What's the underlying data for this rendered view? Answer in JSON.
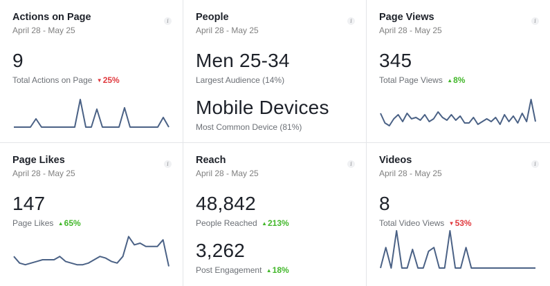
{
  "accent_line_color": "#4a6185",
  "up_color": "#42b72a",
  "down_color": "#e0393e",
  "cards": {
    "actions": {
      "title": "Actions on Page",
      "date": "April 28 - May 25",
      "value": "9",
      "label": "Total Actions on Page",
      "change": "25%",
      "direction": "down",
      "spark": [
        0,
        0,
        0,
        0,
        0.3,
        0,
        0,
        0,
        0,
        0,
        0,
        0,
        1,
        0,
        0,
        0.65,
        0,
        0,
        0,
        0,
        0.7,
        0,
        0,
        0,
        0,
        0,
        0,
        0.35,
        0
      ]
    },
    "people": {
      "title": "People",
      "date": "April 28 - May 25",
      "value": "Men 25-34",
      "label": "Largest Audience (14%)",
      "value2": "Mobile Devices",
      "label2": "Most Common Device (81%)"
    },
    "pageviews": {
      "title": "Page Views",
      "date": "April 28 - May 25",
      "value": "345",
      "label": "Total Page Views",
      "change": "8%",
      "direction": "up",
      "spark": [
        0.5,
        0.15,
        0.05,
        0.3,
        0.45,
        0.2,
        0.5,
        0.3,
        0.35,
        0.25,
        0.45,
        0.2,
        0.3,
        0.55,
        0.35,
        0.25,
        0.45,
        0.25,
        0.4,
        0.15,
        0.15,
        0.35,
        0.1,
        0.2,
        0.3,
        0.2,
        0.35,
        0.1,
        0.45,
        0.2,
        0.4,
        0.15,
        0.5,
        0.2,
        1.0,
        0.2
      ]
    },
    "pagelikes": {
      "title": "Page Likes",
      "date": "April 28 - May 25",
      "value": "147",
      "label": "Page Likes",
      "change": "65%",
      "direction": "up",
      "spark": [
        0.35,
        0.15,
        0.1,
        0.15,
        0.2,
        0.25,
        0.25,
        0.25,
        0.35,
        0.2,
        0.15,
        0.1,
        0.1,
        0.15,
        0.25,
        0.35,
        0.3,
        0.2,
        0.15,
        0.35,
        0.95,
        0.7,
        0.75,
        0.65,
        0.65,
        0.65,
        0.85,
        0.05
      ]
    },
    "reach": {
      "title": "Reach",
      "date": "April 28 - May 25",
      "value": "48,842",
      "label": "People Reached",
      "change": "213%",
      "direction": "up",
      "value2": "3,262",
      "label2": "Post Engagement",
      "change2": "18%",
      "direction2": "up"
    },
    "videos": {
      "title": "Videos",
      "date": "April 28 - May 25",
      "value": "8",
      "label": "Total Video Views",
      "change": "53%",
      "direction": "down",
      "spark": [
        0,
        0.55,
        0,
        1,
        0,
        0,
        0.5,
        0,
        0,
        0.45,
        0.55,
        0,
        0,
        1,
        0,
        0,
        0.55,
        0,
        0,
        0,
        0,
        0,
        0,
        0,
        0,
        0,
        0,
        0,
        0,
        0
      ]
    }
  }
}
